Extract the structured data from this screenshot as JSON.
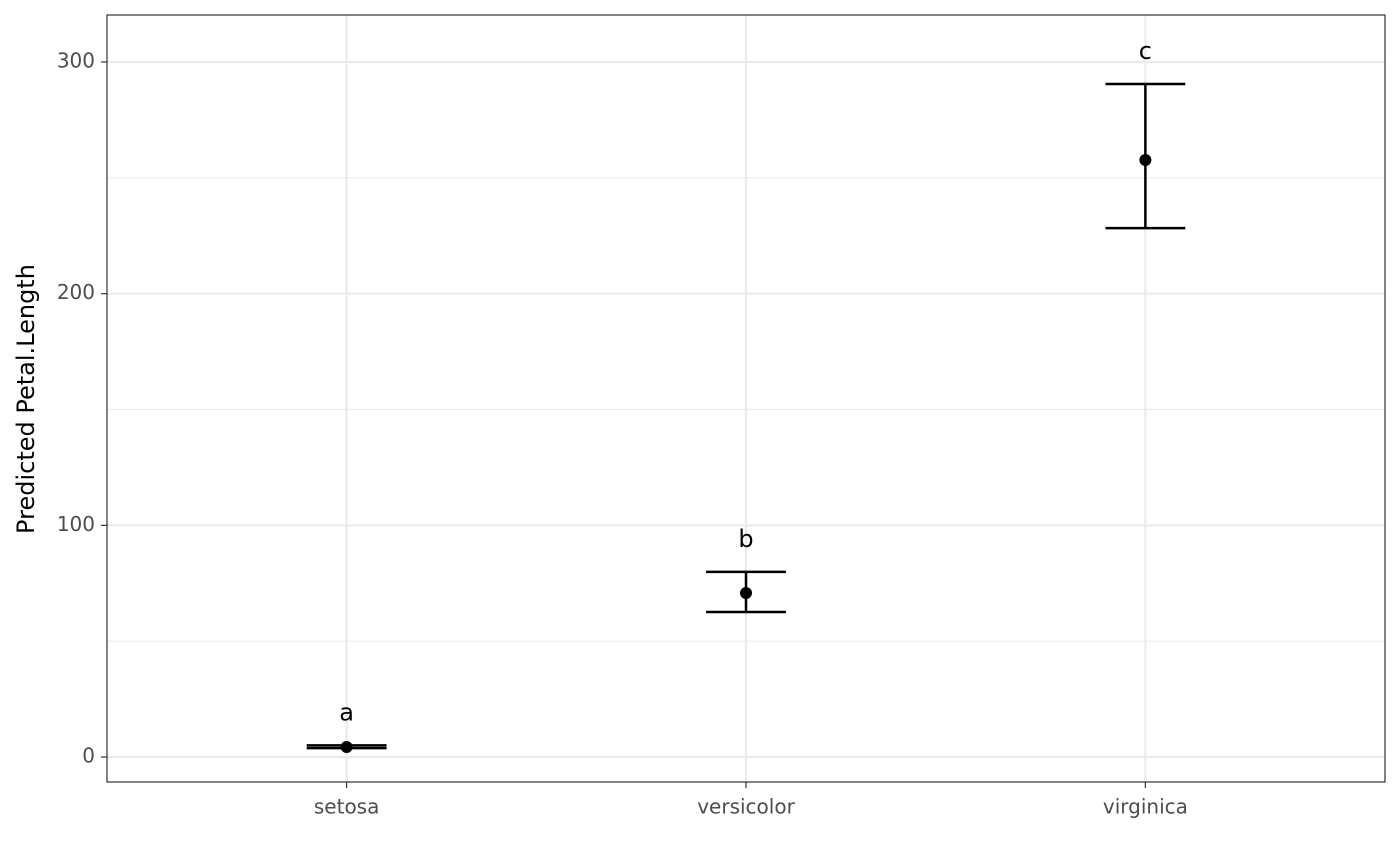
{
  "chart_data": {
    "type": "pointrange",
    "ylabel": "Predicted Petal.Length",
    "categories": [
      "setosa",
      "versicolor",
      "virginica"
    ],
    "values": [
      4.3,
      70.8,
      257.7
    ],
    "lower": [
      3.8,
      62.6,
      228.3
    ],
    "upper": [
      5.0,
      79.9,
      290.5
    ],
    "labels": [
      "a",
      "b",
      "c"
    ],
    "color": "#000000",
    "ylim": [
      -10.8,
      320.3
    ],
    "yticks": [
      0,
      100,
      200,
      300
    ],
    "minor_grid": [
      50,
      150,
      250
    ],
    "grid": true
  }
}
